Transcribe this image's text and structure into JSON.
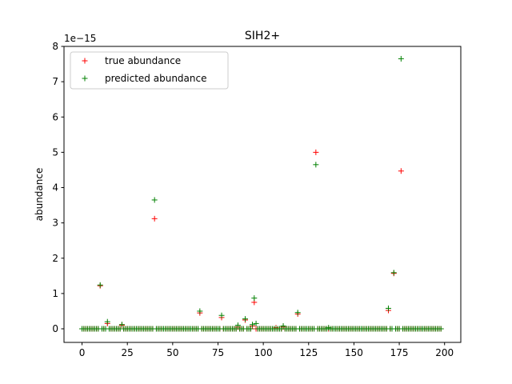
{
  "chart_data": {
    "type": "scatter",
    "title": "SIH2+",
    "xlabel": "",
    "ylabel": "abundance",
    "offset_label": "1e−15",
    "xlim": [
      -9.95,
      208.95
    ],
    "ylim": [
      -0.385,
      8.0
    ],
    "xticks": [
      0,
      25,
      50,
      75,
      100,
      125,
      150,
      175,
      200
    ],
    "yticks": [
      0,
      1,
      2,
      3,
      4,
      5,
      6,
      7,
      8
    ],
    "grid": false,
    "legend": {
      "placement": "top-left"
    },
    "n_points": 199,
    "series": [
      {
        "name": "true abundance",
        "color": "#ff0000",
        "marker": "+",
        "nonzero": [
          [
            10,
            1.22
          ],
          [
            14,
            0.15
          ],
          [
            22,
            0.1
          ],
          [
            40,
            3.12
          ],
          [
            65,
            0.45
          ],
          [
            77,
            0.32
          ],
          [
            86,
            0.05
          ],
          [
            90,
            0.25
          ],
          [
            94,
            0.08
          ],
          [
            95,
            0.75
          ],
          [
            107,
            0.03
          ],
          [
            111,
            0.05
          ],
          [
            119,
            0.42
          ],
          [
            129,
            5.0
          ],
          [
            169,
            0.52
          ],
          [
            172,
            1.57
          ],
          [
            176,
            4.47
          ]
        ]
      },
      {
        "name": "predicted abundance",
        "color": "#008000",
        "marker": "+",
        "nonzero": [
          [
            10,
            1.24
          ],
          [
            14,
            0.2
          ],
          [
            22,
            0.12
          ],
          [
            40,
            3.65
          ],
          [
            65,
            0.5
          ],
          [
            77,
            0.38
          ],
          [
            86,
            0.1
          ],
          [
            90,
            0.28
          ],
          [
            94,
            0.12
          ],
          [
            95,
            0.87
          ],
          [
            96,
            0.15
          ],
          [
            111,
            0.08
          ],
          [
            119,
            0.46
          ],
          [
            129,
            4.65
          ],
          [
            136,
            0.03
          ],
          [
            169,
            0.58
          ],
          [
            172,
            1.59
          ],
          [
            176,
            7.65
          ]
        ]
      }
    ]
  }
}
